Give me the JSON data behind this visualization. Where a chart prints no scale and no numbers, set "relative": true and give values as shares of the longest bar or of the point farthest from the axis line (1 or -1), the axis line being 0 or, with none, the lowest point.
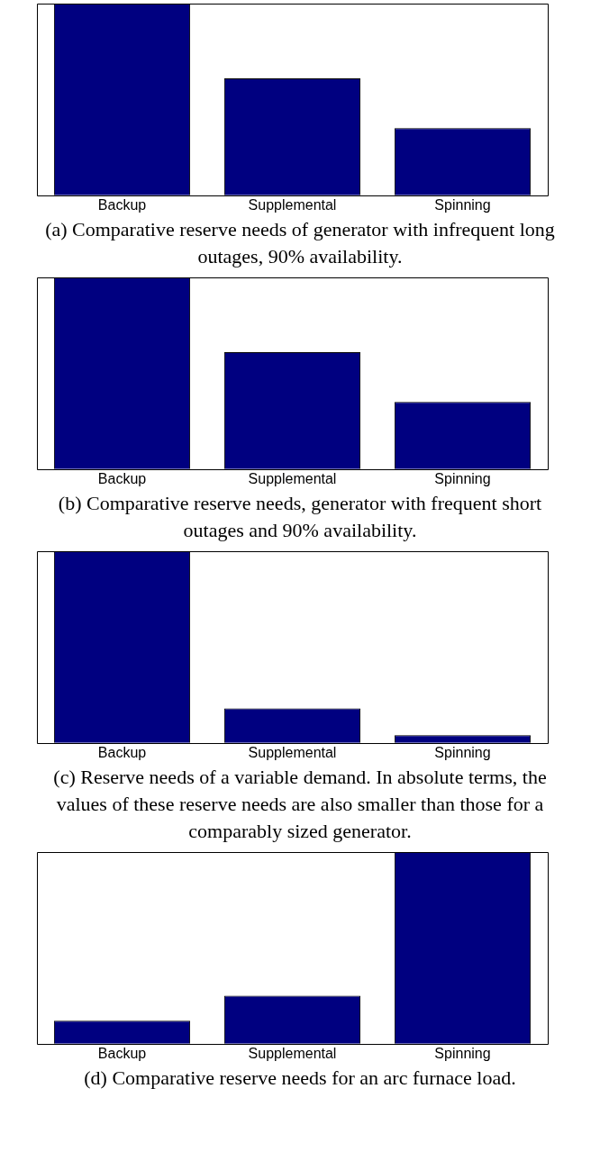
{
  "chart_data": [
    {
      "type": "bar",
      "title": "(a) Comparative reserve needs of generator with infrequent long outages, 90% availability.",
      "categories": [
        "Backup",
        "Supplemental",
        "Spinning"
      ],
      "values": [
        1,
        0.61,
        0.35
      ],
      "color": "#000080",
      "relative": true
    },
    {
      "type": "bar",
      "title": "(b) Comparative reserve needs, generator with frequent short outages and 90% availability.",
      "categories": [
        "Backup",
        "Supplemental",
        "Spinning"
      ],
      "values": [
        1,
        0.61,
        0.35
      ],
      "color": "#000080",
      "relative": true
    },
    {
      "type": "bar",
      "title": "(c) Reserve needs of a variable demand. In absolute terms, the values of these reserve needs are also smaller than those for a comparably sized generator.",
      "categories": [
        "Backup",
        "Supplemental",
        "Spinning"
      ],
      "values": [
        1,
        0.18,
        0.04
      ],
      "color": "#000080",
      "relative": true
    },
    {
      "type": "bar",
      "title": "(d) Comparative reserve needs for an arc furnace load.",
      "categories": [
        "Backup",
        "Supplemental",
        "Spinning"
      ],
      "values": [
        0.12,
        0.25,
        1
      ],
      "color": "#000080",
      "relative": true
    }
  ]
}
